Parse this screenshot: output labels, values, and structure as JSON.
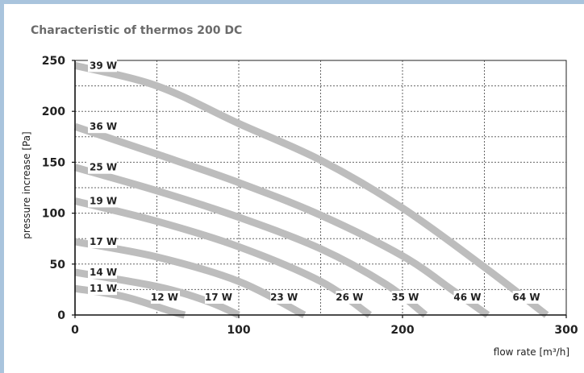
{
  "chart_data": {
    "type": "line",
    "title": "Characteristic of thermos 200 DC",
    "xlabel": "flow rate [m³/h]",
    "ylabel": "pressure increase [Pa]",
    "xlim": [
      0,
      300
    ],
    "ylim": [
      0,
      250
    ],
    "x_ticks": [
      "0",
      "100",
      "200",
      "300"
    ],
    "y_ticks": [
      "0",
      "50",
      "100",
      "150",
      "200",
      "250"
    ],
    "grid": true,
    "color": "#bdbdbd",
    "series": [
      {
        "name": "39 W",
        "end_label": "64 W",
        "points": [
          [
            0,
            245
          ],
          [
            50,
            225
          ],
          [
            100,
            188
          ],
          [
            150,
            152
          ],
          [
            200,
            105
          ],
          [
            250,
            47
          ],
          [
            288,
            0
          ]
        ]
      },
      {
        "name": "36 W",
        "end_label": "46 W",
        "points": [
          [
            0,
            185
          ],
          [
            50,
            158
          ],
          [
            100,
            130
          ],
          [
            150,
            98
          ],
          [
            200,
            58
          ],
          [
            230,
            25
          ],
          [
            252,
            0
          ]
        ]
      },
      {
        "name": "25 W",
        "end_label": "35 W",
        "points": [
          [
            0,
            145
          ],
          [
            50,
            122
          ],
          [
            100,
            96
          ],
          [
            150,
            65
          ],
          [
            190,
            30
          ],
          [
            214,
            0
          ]
        ]
      },
      {
        "name": "19 W",
        "end_label": "26 W",
        "points": [
          [
            0,
            112
          ],
          [
            50,
            92
          ],
          [
            100,
            67
          ],
          [
            150,
            33
          ],
          [
            180,
            0
          ]
        ]
      },
      {
        "name": "17 W",
        "end_label": "23 W",
        "points": [
          [
            0,
            72
          ],
          [
            50,
            57
          ],
          [
            100,
            33
          ],
          [
            140,
            0
          ]
        ]
      },
      {
        "name": "14 W",
        "end_label": "17 W",
        "points": [
          [
            0,
            42
          ],
          [
            50,
            28
          ],
          [
            80,
            14
          ],
          [
            100,
            0
          ]
        ]
      },
      {
        "name": "11 W",
        "end_label": "12 W",
        "points": [
          [
            0,
            26
          ],
          [
            30,
            18
          ],
          [
            60,
            3
          ],
          [
            67,
            0
          ]
        ]
      }
    ]
  }
}
